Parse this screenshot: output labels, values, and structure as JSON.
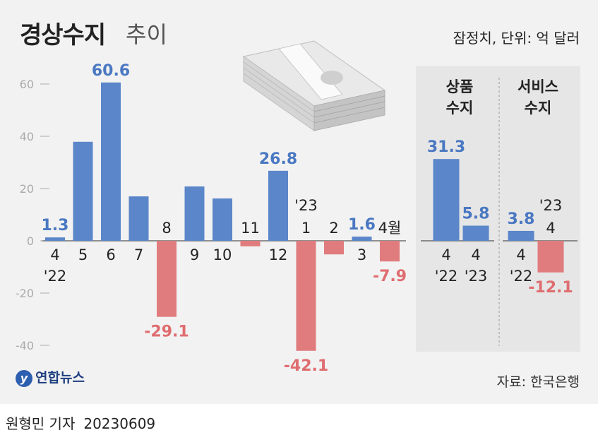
{
  "title_main": "경상수지",
  "title_sub": "추이",
  "unit_note": "잠정치, 단위: 억 달러",
  "source": "자료: 한국은행",
  "logo_text": "연합뉴스",
  "logo_mark": "y",
  "byline": {
    "reporter": "원형민 기자",
    "date": "20230609"
  },
  "colors": {
    "positive": "#5b86c9",
    "negative": "#e07c7e",
    "positive_label": "#4a78c2",
    "negative_label": "#df6d70"
  },
  "chart_data": [
    {
      "type": "bar",
      "title": "경상수지",
      "ylim": [
        -45,
        65
      ],
      "yticks": [
        60,
        40,
        20,
        0,
        -20,
        -40
      ],
      "grid": false,
      "categories": [
        "4",
        "5",
        "6",
        "7",
        "8",
        "9",
        "10",
        "11",
        "12",
        "1",
        "2",
        "3",
        "4월"
      ],
      "year_markers": {
        "0": "'22",
        "9": "'23"
      },
      "values": [
        1.3,
        37.9,
        60.6,
        17.0,
        -29.1,
        20.8,
        16.2,
        -2.1,
        26.8,
        -42.1,
        -5.2,
        1.6,
        -7.9
      ],
      "data_labels": {
        "0": "1.3",
        "2": "60.6",
        "4": "-29.1",
        "8": "26.8",
        "9": "-42.1",
        "11": "1.6",
        "12": "-7.9"
      }
    },
    {
      "type": "bar",
      "title": "상품 수지",
      "ylim": [
        -45,
        65
      ],
      "categories": [
        "4",
        "4"
      ],
      "year_markers": {
        "0": "'22",
        "1": "'23"
      },
      "values": [
        31.3,
        5.8
      ],
      "data_labels": {
        "0": "31.3",
        "1": "5.8"
      }
    },
    {
      "type": "bar",
      "title": "서비스 수지",
      "ylim": [
        -45,
        65
      ],
      "categories": [
        "4",
        "4"
      ],
      "year_markers": {
        "0": "'22",
        "1": "'23"
      },
      "values": [
        3.8,
        -12.1
      ],
      "data_labels": {
        "0": "3.8",
        "1": "-12.1"
      }
    }
  ]
}
